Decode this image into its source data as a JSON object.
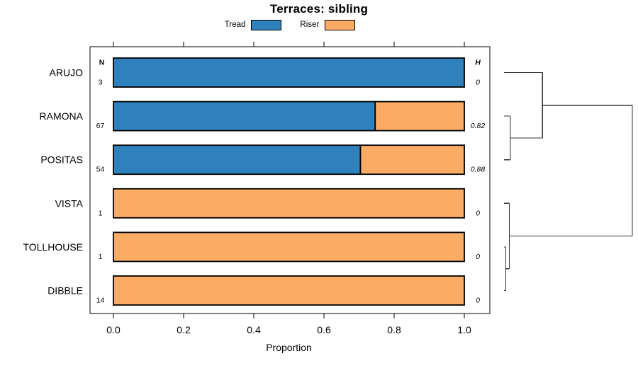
{
  "chart_data": {
    "type": "bar",
    "orientation": "horizontal",
    "stacked": true,
    "title": "Terraces: sibling",
    "xlabel": "Proportion",
    "xlim": [
      0,
      1
    ],
    "xticks": [
      "0.0",
      "0.2",
      "0.4",
      "0.6",
      "0.8",
      "1.0"
    ],
    "grid": false,
    "legend_position": "top",
    "categories": [
      "ARUJO",
      "RAMONA",
      "POSITAS",
      "VISTA",
      "TOLLHOUSE",
      "DIBBLE"
    ],
    "series": [
      {
        "name": "Tread",
        "color": "#2E81BC",
        "values": [
          1.0,
          0.746,
          0.704,
          0.0,
          0.0,
          0.0
        ]
      },
      {
        "name": "Riser",
        "color": "#FBAC64",
        "values": [
          0.0,
          0.254,
          0.296,
          1.0,
          1.0,
          1.0
        ]
      }
    ],
    "columns": {
      "n": {
        "header": "N",
        "values": [
          "3",
          "67",
          "54",
          "1",
          "1",
          "14"
        ]
      },
      "h": {
        "header": "H",
        "values": [
          "0",
          "0.82",
          "0.88",
          "0",
          "0",
          "0"
        ]
      }
    },
    "dendrogram": {
      "leaves": [
        "ARUJO",
        "RAMONA",
        "POSITAS",
        "VISTA",
        "TOLLHOUSE",
        "DIBBLE"
      ],
      "merges": [
        {
          "id": "m1",
          "a": "RAMONA",
          "b": "POSITAS",
          "height": 0.05
        },
        {
          "id": "m2",
          "a": "ARUJO",
          "b": "m1",
          "height": 0.3
        },
        {
          "id": "m3",
          "a": "TOLLHOUSE",
          "b": "DIBBLE",
          "height": 0.014
        },
        {
          "id": "m4",
          "a": "VISTA",
          "b": "m3",
          "height": 0.041
        },
        {
          "id": "m5",
          "a": "m2",
          "b": "m4",
          "height": 1.0
        }
      ]
    },
    "colors": {
      "axis": "#000000",
      "text": "#000000",
      "bar_border": "#000000",
      "dendrogram": "#333333",
      "background": "#FFFFFF"
    }
  }
}
